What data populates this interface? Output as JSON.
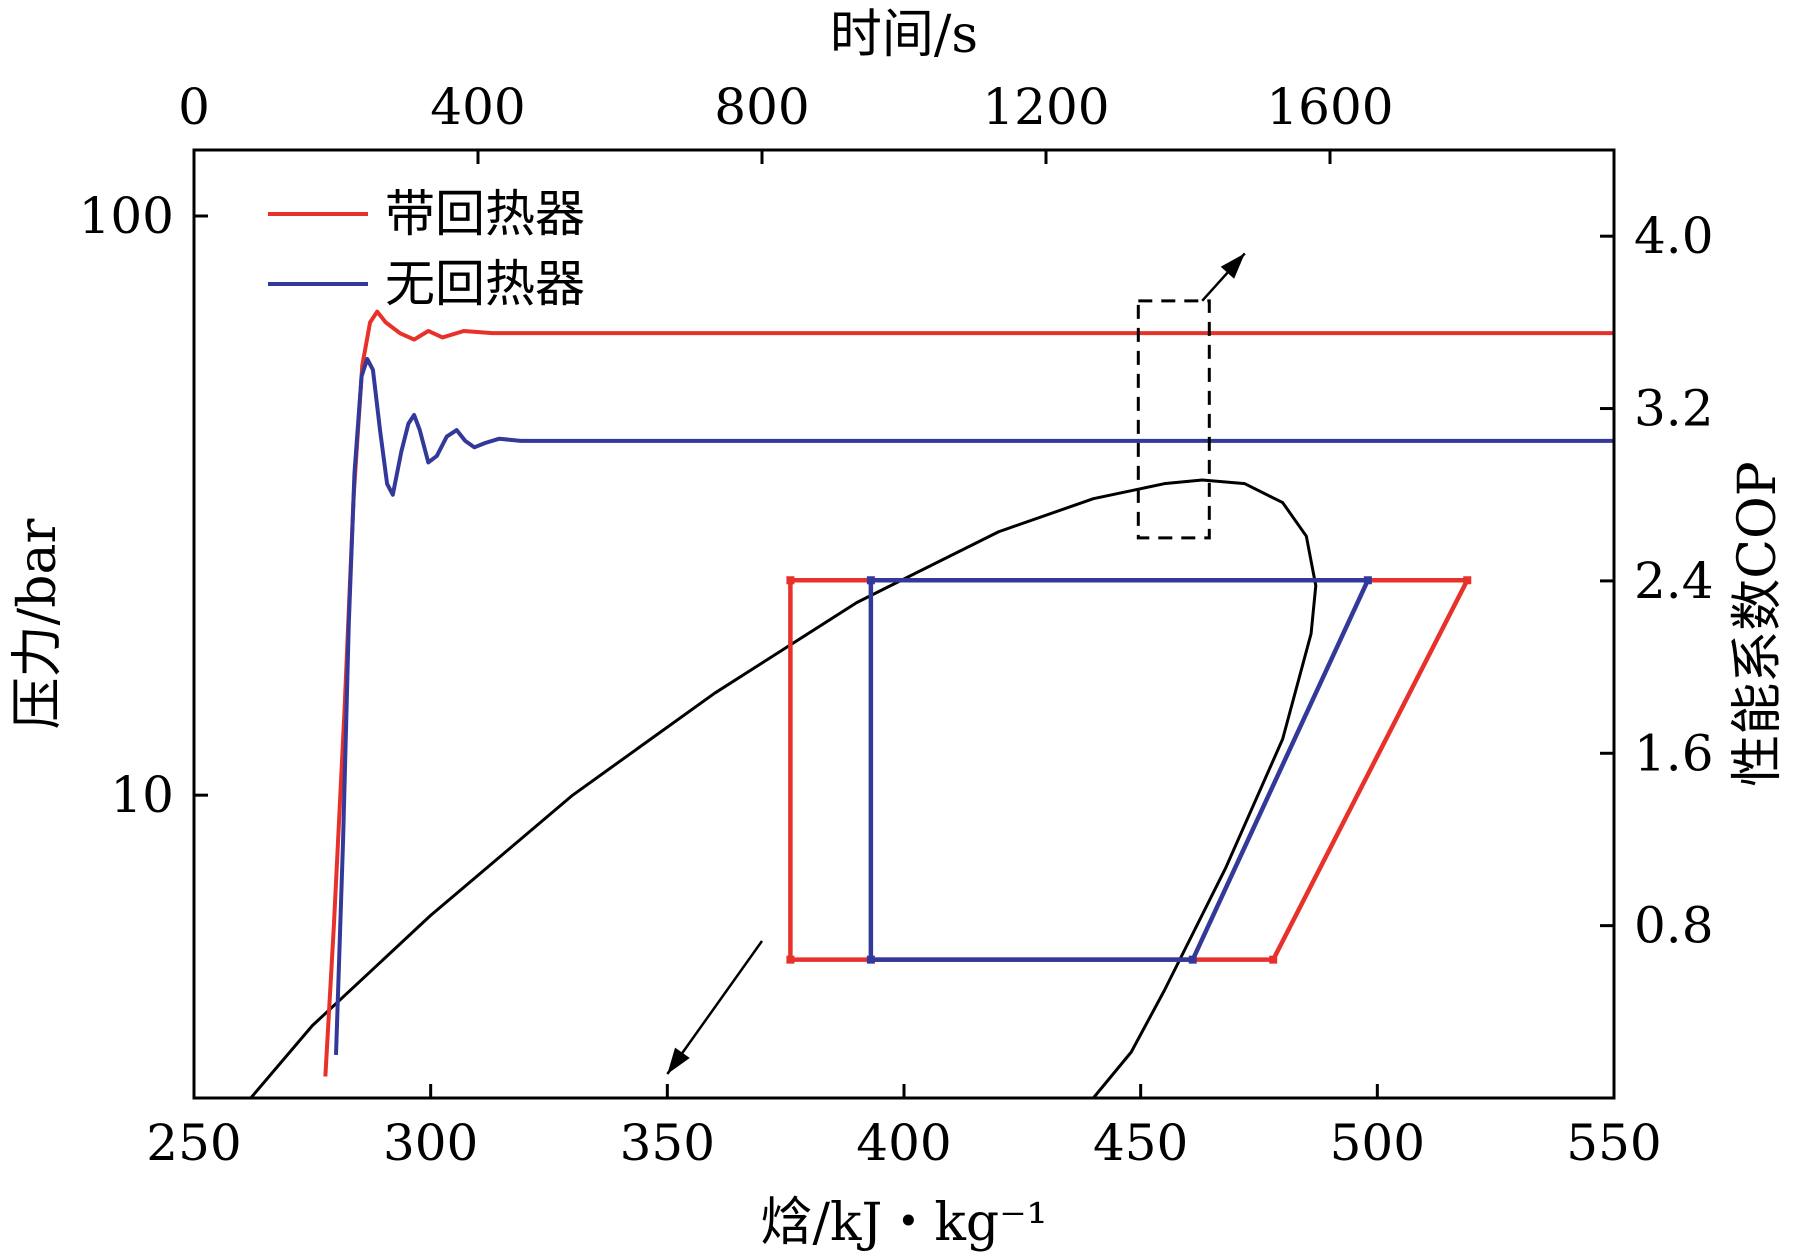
{
  "chart_data": {
    "type": "line",
    "top_axis": {
      "title": "时间/s",
      "range": [
        0,
        2000
      ],
      "ticks": [
        0,
        400,
        800,
        1200,
        1600
      ]
    },
    "bottom_axis": {
      "title": "焓/kJ・kg⁻¹",
      "range": [
        250,
        550
      ],
      "ticks": [
        250,
        300,
        350,
        400,
        450,
        500,
        550
      ]
    },
    "left_axis": {
      "title": "压力/bar",
      "scale": "log",
      "range": [
        3,
        130
      ],
      "ticks": [
        10,
        100
      ]
    },
    "right_axis": {
      "title": "性能系数COP",
      "range": [
        0,
        4.4
      ],
      "ticks": [
        0.8,
        1.6,
        2.4,
        3.2,
        4.0
      ]
    },
    "legend": {
      "position": "top-left",
      "entries": [
        {
          "label": "带回热器",
          "color": "#e8312a"
        },
        {
          "label": "无回热器",
          "color": "#33399a"
        }
      ]
    },
    "colors": {
      "with_recuperator": "#e8312a",
      "without_recuperator": "#33399a",
      "dome": "#000000"
    },
    "cop_series": [
      {
        "name": "带回热器",
        "color": "#e8312a",
        "axes": "time-cop",
        "points": [
          [
            185,
            0.1
          ],
          [
            197,
            0.8
          ],
          [
            212,
            1.8
          ],
          [
            225,
            2.8
          ],
          [
            237,
            3.4
          ],
          [
            248,
            3.6
          ],
          [
            258,
            3.65
          ],
          [
            270,
            3.6
          ],
          [
            290,
            3.55
          ],
          [
            310,
            3.52
          ],
          [
            330,
            3.56
          ],
          [
            350,
            3.53
          ],
          [
            380,
            3.56
          ],
          [
            420,
            3.55
          ],
          [
            480,
            3.55
          ],
          [
            600,
            3.55
          ],
          [
            1000,
            3.55
          ],
          [
            2000,
            3.55
          ]
        ]
      },
      {
        "name": "无回热器",
        "color": "#33399a",
        "axes": "time-cop",
        "points": [
          [
            200,
            0.2
          ],
          [
            210,
            1.2
          ],
          [
            218,
            2.2
          ],
          [
            226,
            2.9
          ],
          [
            236,
            3.35
          ],
          [
            244,
            3.43
          ],
          [
            252,
            3.38
          ],
          [
            262,
            3.1
          ],
          [
            272,
            2.85
          ],
          [
            280,
            2.8
          ],
          [
            292,
            3.0
          ],
          [
            302,
            3.13
          ],
          [
            310,
            3.17
          ],
          [
            318,
            3.1
          ],
          [
            330,
            2.95
          ],
          [
            342,
            2.98
          ],
          [
            356,
            3.07
          ],
          [
            370,
            3.1
          ],
          [
            382,
            3.05
          ],
          [
            395,
            3.02
          ],
          [
            410,
            3.04
          ],
          [
            430,
            3.06
          ],
          [
            460,
            3.05
          ],
          [
            520,
            3.05
          ],
          [
            1000,
            3.05
          ],
          [
            2000,
            3.05
          ]
        ]
      }
    ],
    "cycle_series": [
      {
        "name": "带回热器",
        "color": "#e8312a",
        "axes": "enthalpy-pressure",
        "points": [
          [
            376,
            5.2
          ],
          [
            376,
            23.5
          ],
          [
            519,
            23.5
          ],
          [
            478,
            5.2
          ],
          [
            376,
            5.2
          ]
        ]
      },
      {
        "name": "无回热器",
        "color": "#33399a",
        "axes": "enthalpy-pressure",
        "points": [
          [
            393,
            5.2
          ],
          [
            393,
            23.5
          ],
          [
            498,
            23.5
          ],
          [
            461,
            5.2
          ],
          [
            393,
            5.2
          ]
        ]
      }
    ],
    "saturation_dome": {
      "axes": "enthalpy-pressure",
      "color": "#000000",
      "points": [
        [
          262,
          3
        ],
        [
          275,
          4.0
        ],
        [
          300,
          6.2
        ],
        [
          330,
          10
        ],
        [
          360,
          15
        ],
        [
          390,
          21.5
        ],
        [
          420,
          28.5
        ],
        [
          440,
          32.5
        ],
        [
          455,
          34.5
        ],
        [
          463,
          35
        ],
        [
          472,
          34.5
        ],
        [
          480,
          32
        ],
        [
          485,
          28
        ],
        [
          487,
          23
        ],
        [
          486,
          19
        ],
        [
          480,
          12.5
        ],
        [
          468,
          7.5
        ],
        [
          455,
          4.6
        ],
        [
          448,
          3.6
        ],
        [
          440,
          3
        ]
      ]
    },
    "annotations": [
      {
        "type": "dashed-box",
        "x_range": [
          1330,
          1430
        ],
        "cop_range": [
          2.6,
          3.7
        ]
      },
      {
        "type": "arrow",
        "from_time": [
          1420,
          3.7
        ],
        "to_time": [
          1480,
          3.92
        ]
      },
      {
        "type": "arrow",
        "from_enthalpy": [
          370,
          5.6
        ],
        "to_enthalpy": [
          350,
          3.3
        ]
      }
    ]
  }
}
